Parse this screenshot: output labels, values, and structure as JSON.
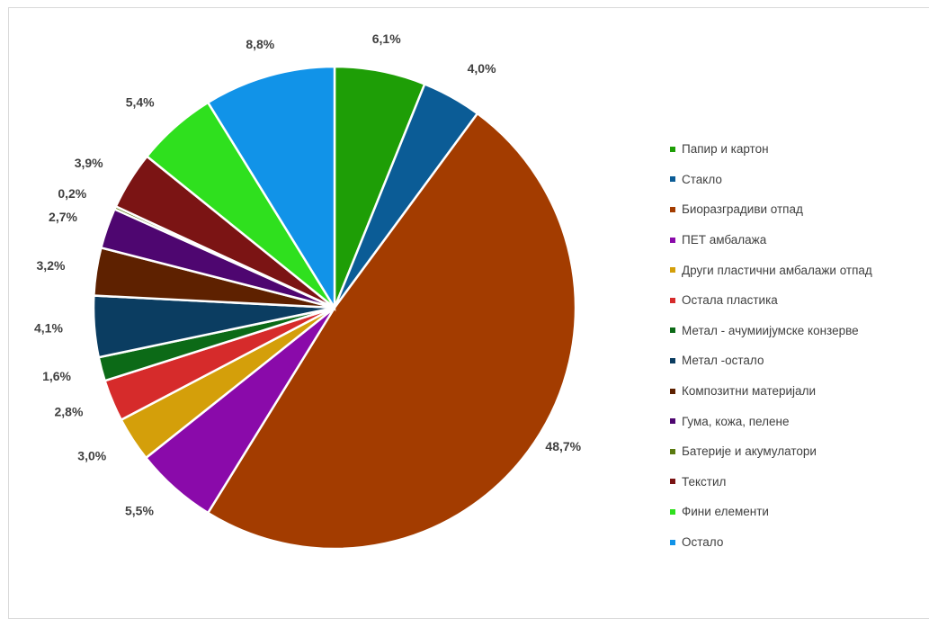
{
  "chart_data": {
    "type": "pie",
    "categories": [
      "Папир и картон",
      "Стакло",
      "Биоразградиви отпад",
      "ПЕТ амбалажа",
      "Други пластични амбалажи отпад",
      "Остала пластика",
      "Метал - ачумиијумске конзерве",
      "Метал -остало",
      "Композитни материјали",
      "Гума, кожа, пелене",
      "Батерије и акумулатори",
      "Текстил",
      "Фини елементи",
      "Остало"
    ],
    "values": [
      6.1,
      4.0,
      48.7,
      5.5,
      3.0,
      2.8,
      1.6,
      4.1,
      3.2,
      2.7,
      0.2,
      3.9,
      5.4,
      8.8
    ],
    "labels": [
      "6,1%",
      "4,0%",
      "48,7%",
      "5,5%",
      "3,0%",
      "2,8%",
      "1,6%",
      "4,1%",
      "3,2%",
      "2,7%",
      "0,2%",
      "3,9%",
      "5,4%",
      "8,8%"
    ],
    "colors": [
      "#1e9e06",
      "#0b5c96",
      "#a33c00",
      "#8a0aaa",
      "#d49f0a",
      "#d62b2b",
      "#0c6a17",
      "#0b3d61",
      "#5e2100",
      "#4e0670",
      "#5a7a10",
      "#7b1414",
      "#2fe01e",
      "#1193e8"
    ],
    "start_angle_deg": 0,
    "direction": "clockwise",
    "legend_position": "right"
  }
}
